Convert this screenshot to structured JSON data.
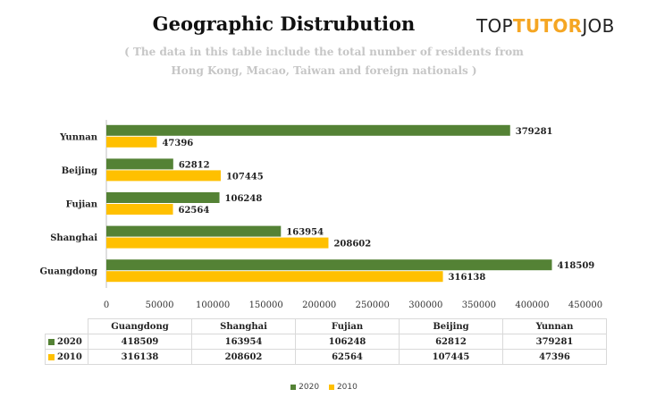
{
  "header": {
    "title": "Geographic Distrubution",
    "brand_top": "TOP",
    "brand_tutor": "TUTOR",
    "brand_job": "JOB",
    "subtitle_line1": "( The data in this table include the total number of residents from",
    "subtitle_line2": "Hong Kong, Macao, Taiwan and foreign nationals )"
  },
  "colors": {
    "series_2020": "#548235",
    "series_2010": "#ffc000",
    "brand_accent": "#f5a623"
  },
  "chart_data": {
    "type": "bar",
    "orientation": "horizontal",
    "categories": [
      "Guangdong",
      "Shanghai",
      "Fujian",
      "Beijing",
      "Yunnan"
    ],
    "series": [
      {
        "name": "2020",
        "values": [
          418509,
          163954,
          106248,
          62812,
          379281
        ]
      },
      {
        "name": "2010",
        "values": [
          316138,
          208602,
          62564,
          107445,
          47396
        ]
      }
    ],
    "xlim": [
      0,
      450000
    ],
    "xticks": [
      0,
      50000,
      100000,
      150000,
      200000,
      250000,
      300000,
      350000,
      400000,
      450000
    ],
    "grid": false,
    "legend_position": "bottom",
    "data_table": true
  }
}
